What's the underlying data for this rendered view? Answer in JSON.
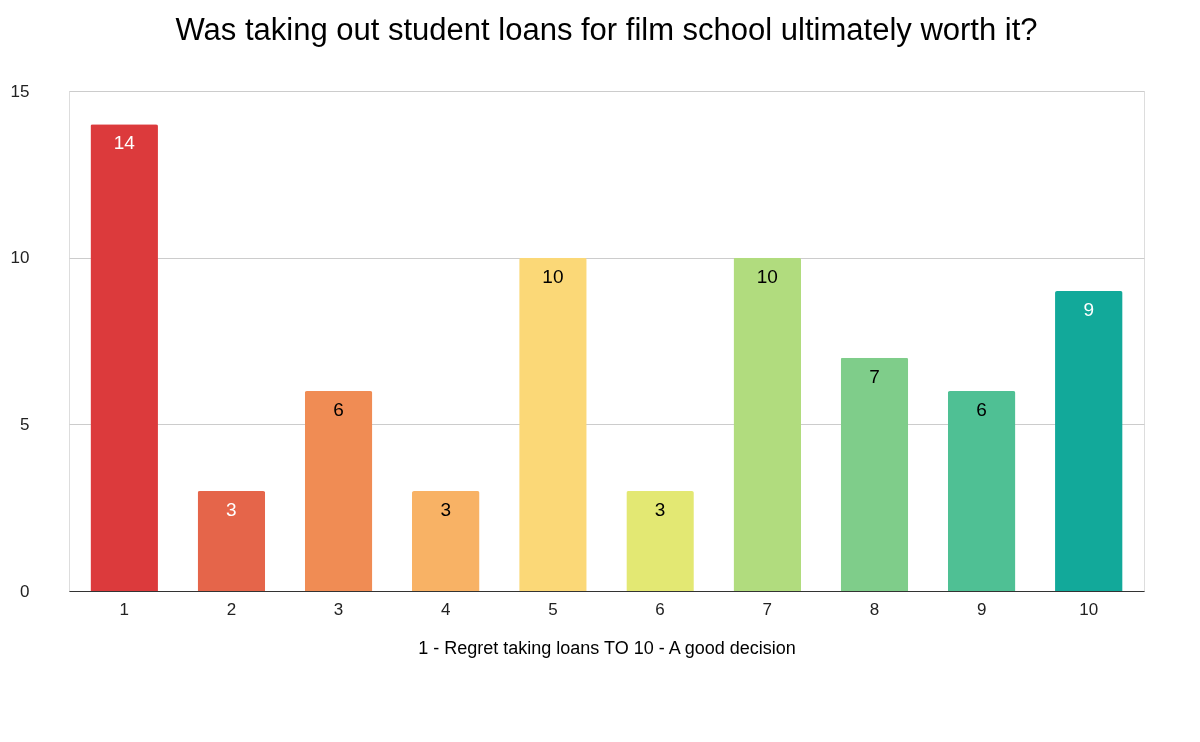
{
  "chart_data": {
    "type": "bar",
    "title": "Was taking out student loans for film school ultimately worth it?",
    "xlabel": "1 - Regret taking loans TO 10 - A good decision",
    "categories": [
      "1",
      "2",
      "3",
      "4",
      "5",
      "6",
      "7",
      "8",
      "9",
      "10"
    ],
    "values": [
      14,
      3,
      6,
      3,
      10,
      3,
      10,
      7,
      6,
      9
    ],
    "colors": [
      "#dc3a3c",
      "#e5654a",
      "#f08c54",
      "#f8b265",
      "#fbd877",
      "#e3e873",
      "#b1dc7e",
      "#7fcd8a",
      "#4fc094",
      "#12a99a"
    ],
    "ylim": [
      0,
      15
    ],
    "yticks": [
      0,
      5,
      10,
      15
    ],
    "grid": "y",
    "data_labels": true
  }
}
